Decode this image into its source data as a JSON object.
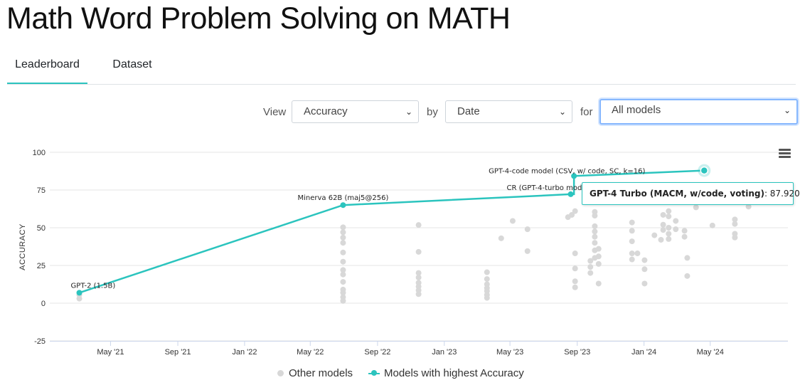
{
  "page": {
    "title": "Math Word Problem Solving on MATH"
  },
  "tabs": [
    {
      "label": "Leaderboard",
      "active": true
    },
    {
      "label": "Dataset",
      "active": false
    }
  ],
  "controls": {
    "view_label": "View",
    "view_value": "Accuracy",
    "by_label": "by",
    "by_value": "Date",
    "for_label": "for",
    "for_value": "All models"
  },
  "tooltip": {
    "model": "GPT-4 Turbo (MACM, w/code, voting)",
    "value": "87.920"
  },
  "legend": {
    "other": "Other models",
    "best": "Models with highest Accuracy"
  },
  "colors": {
    "accent": "#2bc4be",
    "other_points": "#d8d8d8",
    "focus": "#86b7fe"
  },
  "icons": {
    "chart_menu": "hamburger-menu-icon"
  },
  "chart_data": {
    "type": "scatter",
    "ylabel": "ACCURACY",
    "xlabel": "",
    "ylim": [
      -25,
      100
    ],
    "yticks": [
      100,
      75,
      50,
      25,
      0,
      -25
    ],
    "xlim": [
      "2021-01-10",
      "2024-09-20"
    ],
    "xticks": [
      {
        "label": "May '21",
        "date": "2021-05-01"
      },
      {
        "label": "Sep '21",
        "date": "2021-09-01"
      },
      {
        "label": "Jan '22",
        "date": "2022-01-01"
      },
      {
        "label": "May '22",
        "date": "2022-05-01"
      },
      {
        "label": "Sep '22",
        "date": "2022-09-01"
      },
      {
        "label": "Jan '23",
        "date": "2023-01-01"
      },
      {
        "label": "May '23",
        "date": "2023-05-01"
      },
      {
        "label": "Sep '23",
        "date": "2023-09-01"
      },
      {
        "label": "Jan '24",
        "date": "2024-01-01"
      },
      {
        "label": "May '24",
        "date": "2024-05-01"
      }
    ],
    "grid": true,
    "legend_position": "bottom",
    "series": [
      {
        "name": "Models with highest Accuracy",
        "points": [
          {
            "date": "2021-03-05",
            "y": 6.9,
            "label": "GPT-2 (1.5B)"
          },
          {
            "date": "2022-06-30",
            "y": 65.0,
            "label": "Minerva 62B (maj5@256)"
          },
          {
            "date": "2023-08-20",
            "y": 72.2,
            "label": "CR (GPT-4-turbo model, w/ code)"
          },
          {
            "date": "2023-08-26",
            "y": 84.3,
            "label": "GPT-4-code model (CSV, w/ code, SC, k=16)"
          },
          {
            "date": "2024-04-20",
            "y": 87.92,
            "label": "GPT-4 Turbo (MACM, w/code, voting)"
          }
        ]
      },
      {
        "name": "Other models",
        "points": [
          {
            "date": "2021-03-05",
            "y": 3.0
          },
          {
            "date": "2021-03-05",
            "y": 5.5
          },
          {
            "date": "2022-06-30",
            "y": 1.5
          },
          {
            "date": "2022-06-30",
            "y": 4.0
          },
          {
            "date": "2022-06-30",
            "y": 6.9
          },
          {
            "date": "2022-06-30",
            "y": 9.0
          },
          {
            "date": "2022-06-30",
            "y": 14.1
          },
          {
            "date": "2022-06-30",
            "y": 19.0
          },
          {
            "date": "2022-06-30",
            "y": 22.0
          },
          {
            "date": "2022-06-30",
            "y": 27.5
          },
          {
            "date": "2022-06-30",
            "y": 33.6
          },
          {
            "date": "2022-06-30",
            "y": 40.0
          },
          {
            "date": "2022-06-30",
            "y": 43.5
          },
          {
            "date": "2022-06-30",
            "y": 47.0
          },
          {
            "date": "2022-06-30",
            "y": 50.3
          },
          {
            "date": "2022-11-15",
            "y": 6.0
          },
          {
            "date": "2022-11-15",
            "y": 8.5
          },
          {
            "date": "2022-11-15",
            "y": 11.0
          },
          {
            "date": "2022-11-15",
            "y": 13.5
          },
          {
            "date": "2022-11-15",
            "y": 17.0
          },
          {
            "date": "2022-11-15",
            "y": 20.0
          },
          {
            "date": "2022-11-15",
            "y": 34.0
          },
          {
            "date": "2022-11-15",
            "y": 51.8
          },
          {
            "date": "2023-03-20",
            "y": 3.5
          },
          {
            "date": "2023-03-20",
            "y": 5.5
          },
          {
            "date": "2023-03-20",
            "y": 8.0
          },
          {
            "date": "2023-03-20",
            "y": 10.0
          },
          {
            "date": "2023-03-20",
            "y": 12.5
          },
          {
            "date": "2023-03-20",
            "y": 16.0
          },
          {
            "date": "2023-03-20",
            "y": 20.5
          },
          {
            "date": "2023-04-15",
            "y": 43.0
          },
          {
            "date": "2023-05-06",
            "y": 54.5
          },
          {
            "date": "2023-06-02",
            "y": 49.0
          },
          {
            "date": "2023-06-02",
            "y": 34.5
          },
          {
            "date": "2023-08-15",
            "y": 57.0
          },
          {
            "date": "2023-08-22",
            "y": 58.5
          },
          {
            "date": "2023-08-28",
            "y": 61.0
          },
          {
            "date": "2023-08-28",
            "y": 33.0
          },
          {
            "date": "2023-08-28",
            "y": 23.0
          },
          {
            "date": "2023-08-28",
            "y": 14.5
          },
          {
            "date": "2023-08-28",
            "y": 10.5
          },
          {
            "date": "2023-09-25",
            "y": 28.0
          },
          {
            "date": "2023-09-25",
            "y": 24.0
          },
          {
            "date": "2023-09-25",
            "y": 20.0
          },
          {
            "date": "2023-10-03",
            "y": 60.5
          },
          {
            "date": "2023-10-03",
            "y": 58.0
          },
          {
            "date": "2023-10-03",
            "y": 51.0
          },
          {
            "date": "2023-10-03",
            "y": 47.5
          },
          {
            "date": "2023-10-03",
            "y": 44.0
          },
          {
            "date": "2023-10-03",
            "y": 40.0
          },
          {
            "date": "2023-10-03",
            "y": 35.0
          },
          {
            "date": "2023-10-03",
            "y": 30.0
          },
          {
            "date": "2023-10-10",
            "y": 36.0
          },
          {
            "date": "2023-10-10",
            "y": 31.0
          },
          {
            "date": "2023-10-10",
            "y": 26.0
          },
          {
            "date": "2023-10-10",
            "y": 13.0
          },
          {
            "date": "2023-12-10",
            "y": 53.5
          },
          {
            "date": "2023-12-10",
            "y": 48.0
          },
          {
            "date": "2023-12-10",
            "y": 41.0
          },
          {
            "date": "2023-12-10",
            "y": 33.0
          },
          {
            "date": "2023-12-10",
            "y": 29.0
          },
          {
            "date": "2023-12-20",
            "y": 33.0
          },
          {
            "date": "2024-01-02",
            "y": 28.5
          },
          {
            "date": "2024-01-02",
            "y": 22.5
          },
          {
            "date": "2024-01-02",
            "y": 13.0
          },
          {
            "date": "2024-01-20",
            "y": 45.0
          },
          {
            "date": "2024-02-01",
            "y": 42.0
          },
          {
            "date": "2024-02-05",
            "y": 58.5
          },
          {
            "date": "2024-02-05",
            "y": 52.0
          },
          {
            "date": "2024-02-05",
            "y": 48.5
          },
          {
            "date": "2024-02-15",
            "y": 61.0
          },
          {
            "date": "2024-02-15",
            "y": 57.5
          },
          {
            "date": "2024-02-15",
            "y": 50.0
          },
          {
            "date": "2024-02-15",
            "y": 46.0
          },
          {
            "date": "2024-02-15",
            "y": 42.5
          },
          {
            "date": "2024-02-28",
            "y": 54.5
          },
          {
            "date": "2024-02-28",
            "y": 49.0
          },
          {
            "date": "2024-03-15",
            "y": 48.0
          },
          {
            "date": "2024-03-15",
            "y": 44.0
          },
          {
            "date": "2024-03-20",
            "y": 30.0
          },
          {
            "date": "2024-03-20",
            "y": 18.0
          },
          {
            "date": "2024-04-05",
            "y": 63.5
          },
          {
            "date": "2024-05-05",
            "y": 51.5
          },
          {
            "date": "2024-06-15",
            "y": 55.5
          },
          {
            "date": "2024-06-15",
            "y": 52.5
          },
          {
            "date": "2024-06-15",
            "y": 46.0
          },
          {
            "date": "2024-06-15",
            "y": 43.5
          },
          {
            "date": "2024-07-10",
            "y": 64.0
          }
        ]
      }
    ]
  }
}
